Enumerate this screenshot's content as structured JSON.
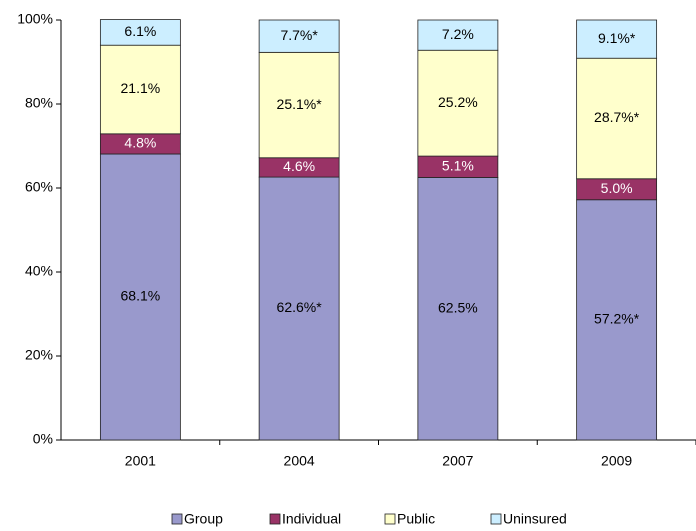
{
  "chart_data": {
    "type": "stacked_bar",
    "categories": [
      "2001",
      "2004",
      "2007",
      "2009"
    ],
    "series": [
      {
        "name": "Group",
        "color": "#9999cc",
        "values": [
          68.1,
          62.6,
          62.5,
          57.2
        ],
        "value_labels": [
          "68.1%",
          "62.6%*",
          "62.5%",
          "57.2%*"
        ]
      },
      {
        "name": "Individual",
        "color": "#993366",
        "values": [
          4.8,
          4.6,
          5.1,
          5.0
        ],
        "value_labels": [
          "4.8%",
          "4.6%",
          "5.1%",
          "5.0%"
        ]
      },
      {
        "name": "Public",
        "color": "#ffffcc",
        "values": [
          21.1,
          25.1,
          25.2,
          28.7
        ],
        "value_labels": [
          "21.1%",
          "25.1%*",
          "25.2%",
          "28.7%*"
        ]
      },
      {
        "name": "Uninsured",
        "color": "#cceeff",
        "values": [
          6.1,
          7.7,
          7.2,
          9.1
        ],
        "value_labels": [
          "6.1%",
          "7.7%*",
          "7.2%",
          "9.1%*"
        ]
      }
    ],
    "ylim": [
      0,
      100
    ],
    "yticks": [
      {
        "value": 0,
        "label": "0%"
      },
      {
        "value": 20,
        "label": "20%"
      },
      {
        "value": 40,
        "label": "40%"
      },
      {
        "value": 60,
        "label": "60%"
      },
      {
        "value": 80,
        "label": "80%"
      },
      {
        "value": 100,
        "label": "100%"
      }
    ],
    "legend": "bottom"
  }
}
